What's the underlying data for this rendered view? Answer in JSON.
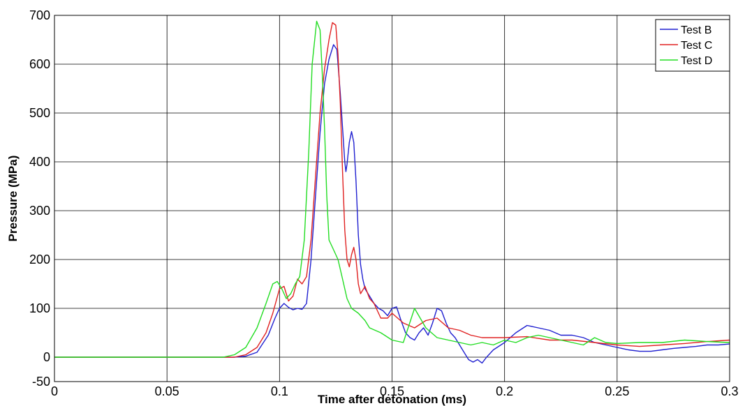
{
  "chart_data": {
    "type": "line",
    "title": "",
    "xlabel": "Time after detonation (ms)",
    "ylabel": "Pressure (MPa)",
    "xlim": [
      0,
      0.3
    ],
    "ylim": [
      -50,
      700
    ],
    "x_ticks": [
      0,
      0.05,
      0.1,
      0.15,
      0.2,
      0.25,
      0.3
    ],
    "x_tick_labels": [
      "0",
      "0.05",
      "0.1",
      "0.15",
      "0.2",
      "0.25",
      "0.3"
    ],
    "y_ticks": [
      -50,
      0,
      100,
      200,
      300,
      400,
      500,
      600,
      700
    ],
    "y_tick_labels": [
      "-50",
      "0",
      "100",
      "200",
      "300",
      "400",
      "500",
      "600",
      "700"
    ],
    "grid_x": [
      0,
      0.05,
      0.1,
      0.15,
      0.2,
      0.25,
      0.3
    ],
    "grid_y": [
      0,
      100,
      200,
      300,
      400,
      500,
      600,
      700
    ],
    "grid": true,
    "legend_position": "top-right",
    "series": [
      {
        "name": "Test B",
        "color": "#1f1fd0",
        "points": [
          [
            0,
            0
          ],
          [
            0.02,
            0
          ],
          [
            0.05,
            0
          ],
          [
            0.07,
            0
          ],
          [
            0.08,
            0
          ],
          [
            0.085,
            2
          ],
          [
            0.09,
            10
          ],
          [
            0.095,
            45
          ],
          [
            0.098,
            80
          ],
          [
            0.1,
            100
          ],
          [
            0.102,
            110
          ],
          [
            0.104,
            102
          ],
          [
            0.106,
            97
          ],
          [
            0.108,
            100
          ],
          [
            0.11,
            98
          ],
          [
            0.112,
            110
          ],
          [
            0.114,
            200
          ],
          [
            0.116,
            330
          ],
          [
            0.118,
            460
          ],
          [
            0.12,
            560
          ],
          [
            0.122,
            610
          ],
          [
            0.124,
            640
          ],
          [
            0.1255,
            630
          ],
          [
            0.127,
            540
          ],
          [
            0.128,
            470
          ],
          [
            0.129,
            400
          ],
          [
            0.1295,
            380
          ],
          [
            0.13,
            395
          ],
          [
            0.131,
            440
          ],
          [
            0.132,
            462
          ],
          [
            0.133,
            440
          ],
          [
            0.134,
            360
          ],
          [
            0.135,
            250
          ],
          [
            0.136,
            190
          ],
          [
            0.137,
            160
          ],
          [
            0.138,
            140
          ],
          [
            0.14,
            125
          ],
          [
            0.142,
            110
          ],
          [
            0.144,
            100
          ],
          [
            0.146,
            95
          ],
          [
            0.148,
            85
          ],
          [
            0.15,
            100
          ],
          [
            0.152,
            103
          ],
          [
            0.154,
            75
          ],
          [
            0.156,
            50
          ],
          [
            0.158,
            40
          ],
          [
            0.16,
            35
          ],
          [
            0.162,
            50
          ],
          [
            0.164,
            60
          ],
          [
            0.166,
            45
          ],
          [
            0.168,
            70
          ],
          [
            0.17,
            100
          ],
          [
            0.172,
            95
          ],
          [
            0.174,
            70
          ],
          [
            0.176,
            50
          ],
          [
            0.178,
            40
          ],
          [
            0.18,
            25
          ],
          [
            0.182,
            10
          ],
          [
            0.184,
            -5
          ],
          [
            0.186,
            -10
          ],
          [
            0.188,
            -5
          ],
          [
            0.19,
            -12
          ],
          [
            0.192,
            0
          ],
          [
            0.195,
            15
          ],
          [
            0.2,
            30
          ],
          [
            0.205,
            50
          ],
          [
            0.21,
            65
          ],
          [
            0.215,
            60
          ],
          [
            0.22,
            55
          ],
          [
            0.225,
            45
          ],
          [
            0.23,
            45
          ],
          [
            0.235,
            40
          ],
          [
            0.24,
            30
          ],
          [
            0.245,
            25
          ],
          [
            0.25,
            20
          ],
          [
            0.255,
            15
          ],
          [
            0.26,
            12
          ],
          [
            0.265,
            12
          ],
          [
            0.27,
            15
          ],
          [
            0.275,
            18
          ],
          [
            0.28,
            20
          ],
          [
            0.285,
            22
          ],
          [
            0.29,
            25
          ],
          [
            0.295,
            25
          ],
          [
            0.3,
            27
          ]
        ]
      },
      {
        "name": "Test C",
        "color": "#e02020",
        "points": [
          [
            0,
            0
          ],
          [
            0.02,
            0
          ],
          [
            0.05,
            0
          ],
          [
            0.07,
            0
          ],
          [
            0.08,
            0
          ],
          [
            0.085,
            5
          ],
          [
            0.09,
            20
          ],
          [
            0.094,
            50
          ],
          [
            0.097,
            90
          ],
          [
            0.1,
            140
          ],
          [
            0.102,
            145
          ],
          [
            0.104,
            115
          ],
          [
            0.106,
            125
          ],
          [
            0.108,
            160
          ],
          [
            0.11,
            150
          ],
          [
            0.112,
            165
          ],
          [
            0.114,
            240
          ],
          [
            0.116,
            370
          ],
          [
            0.118,
            500
          ],
          [
            0.12,
            590
          ],
          [
            0.122,
            650
          ],
          [
            0.1235,
            685
          ],
          [
            0.125,
            680
          ],
          [
            0.126,
            620
          ],
          [
            0.127,
            520
          ],
          [
            0.128,
            380
          ],
          [
            0.129,
            260
          ],
          [
            0.13,
            200
          ],
          [
            0.131,
            185
          ],
          [
            0.132,
            210
          ],
          [
            0.133,
            225
          ],
          [
            0.134,
            200
          ],
          [
            0.135,
            150
          ],
          [
            0.136,
            130
          ],
          [
            0.138,
            145
          ],
          [
            0.14,
            120
          ],
          [
            0.142,
            110
          ],
          [
            0.145,
            80
          ],
          [
            0.148,
            80
          ],
          [
            0.15,
            90
          ],
          [
            0.155,
            70
          ],
          [
            0.16,
            60
          ],
          [
            0.165,
            75
          ],
          [
            0.17,
            80
          ],
          [
            0.175,
            60
          ],
          [
            0.18,
            55
          ],
          [
            0.185,
            45
          ],
          [
            0.19,
            40
          ],
          [
            0.2,
            40
          ],
          [
            0.21,
            42
          ],
          [
            0.22,
            35
          ],
          [
            0.23,
            35
          ],
          [
            0.24,
            30
          ],
          [
            0.25,
            25
          ],
          [
            0.26,
            22
          ],
          [
            0.27,
            25
          ],
          [
            0.28,
            28
          ],
          [
            0.29,
            32
          ],
          [
            0.3,
            35
          ]
        ]
      },
      {
        "name": "Test D",
        "color": "#22dd22",
        "points": [
          [
            0,
            0
          ],
          [
            0.02,
            0
          ],
          [
            0.05,
            0
          ],
          [
            0.07,
            0
          ],
          [
            0.075,
            0
          ],
          [
            0.08,
            5
          ],
          [
            0.085,
            20
          ],
          [
            0.09,
            60
          ],
          [
            0.094,
            110
          ],
          [
            0.097,
            150
          ],
          [
            0.099,
            155
          ],
          [
            0.101,
            140
          ],
          [
            0.103,
            120
          ],
          [
            0.105,
            130
          ],
          [
            0.107,
            150
          ],
          [
            0.109,
            165
          ],
          [
            0.111,
            240
          ],
          [
            0.113,
            420
          ],
          [
            0.1145,
            600
          ],
          [
            0.1165,
            688
          ],
          [
            0.118,
            670
          ],
          [
            0.119,
            580
          ],
          [
            0.12,
            470
          ],
          [
            0.121,
            330
          ],
          [
            0.122,
            240
          ],
          [
            0.124,
            220
          ],
          [
            0.126,
            200
          ],
          [
            0.128,
            160
          ],
          [
            0.13,
            120
          ],
          [
            0.132,
            100
          ],
          [
            0.135,
            90
          ],
          [
            0.138,
            75
          ],
          [
            0.14,
            60
          ],
          [
            0.145,
            50
          ],
          [
            0.15,
            35
          ],
          [
            0.155,
            30
          ],
          [
            0.16,
            100
          ],
          [
            0.165,
            60
          ],
          [
            0.17,
            40
          ],
          [
            0.175,
            35
          ],
          [
            0.18,
            30
          ],
          [
            0.185,
            25
          ],
          [
            0.19,
            30
          ],
          [
            0.195,
            25
          ],
          [
            0.2,
            35
          ],
          [
            0.205,
            30
          ],
          [
            0.21,
            40
          ],
          [
            0.215,
            45
          ],
          [
            0.22,
            40
          ],
          [
            0.225,
            35
          ],
          [
            0.23,
            30
          ],
          [
            0.235,
            25
          ],
          [
            0.24,
            40
          ],
          [
            0.245,
            30
          ],
          [
            0.25,
            28
          ],
          [
            0.26,
            30
          ],
          [
            0.27,
            30
          ],
          [
            0.28,
            35
          ],
          [
            0.29,
            32
          ],
          [
            0.3,
            30
          ]
        ]
      }
    ]
  }
}
